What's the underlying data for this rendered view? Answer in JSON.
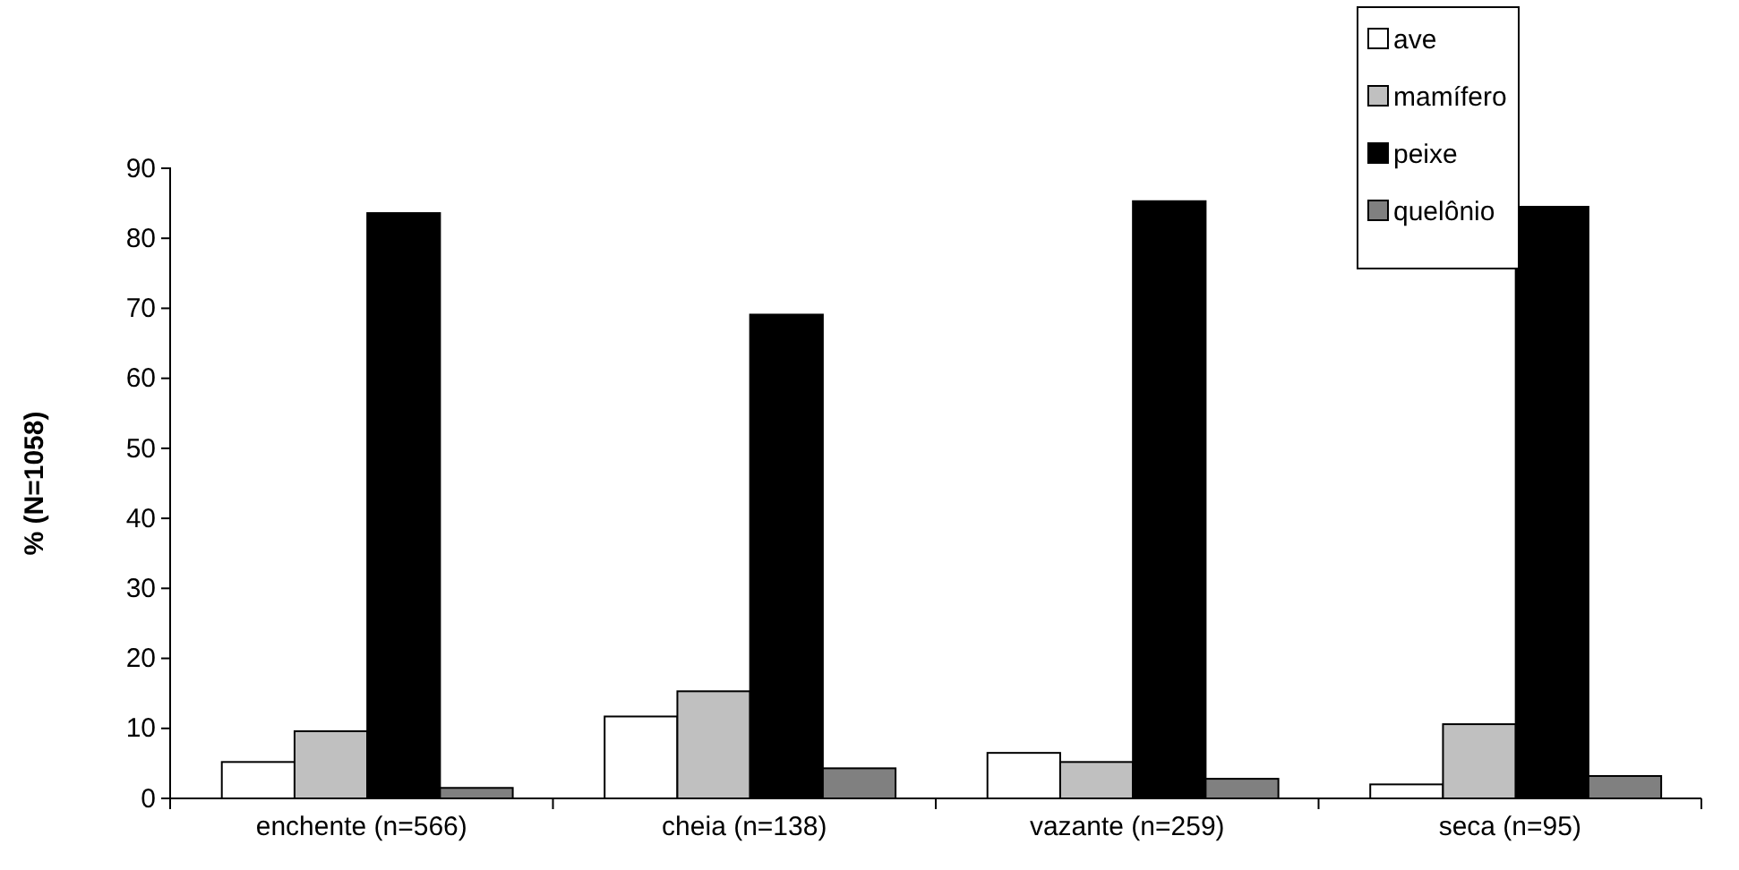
{
  "chart_data": {
    "type": "bar",
    "ylabel": "% (N=1058)",
    "categories": [
      "enchente (n=566)",
      "cheia (n=138)",
      "vazante (n=259)",
      "seca (n=95)"
    ],
    "series": [
      {
        "name": "ave",
        "color": "#ffffff",
        "values": [
          5.2,
          11.7,
          6.5,
          2.0
        ]
      },
      {
        "name": "mamífero",
        "color": "#c0c0c0",
        "values": [
          9.6,
          15.3,
          5.2,
          10.6
        ]
      },
      {
        "name": "peixe",
        "color": "#000000",
        "values": [
          83.6,
          69.1,
          85.3,
          84.5
        ]
      },
      {
        "name": "quelônio",
        "color": "#808080",
        "values": [
          1.5,
          4.3,
          2.8,
          3.2
        ]
      }
    ],
    "ylim": [
      0,
      90
    ],
    "yticks": [
      0,
      10,
      20,
      30,
      40,
      50,
      60,
      70,
      80,
      90
    ],
    "grid": false,
    "legend": "top right"
  }
}
